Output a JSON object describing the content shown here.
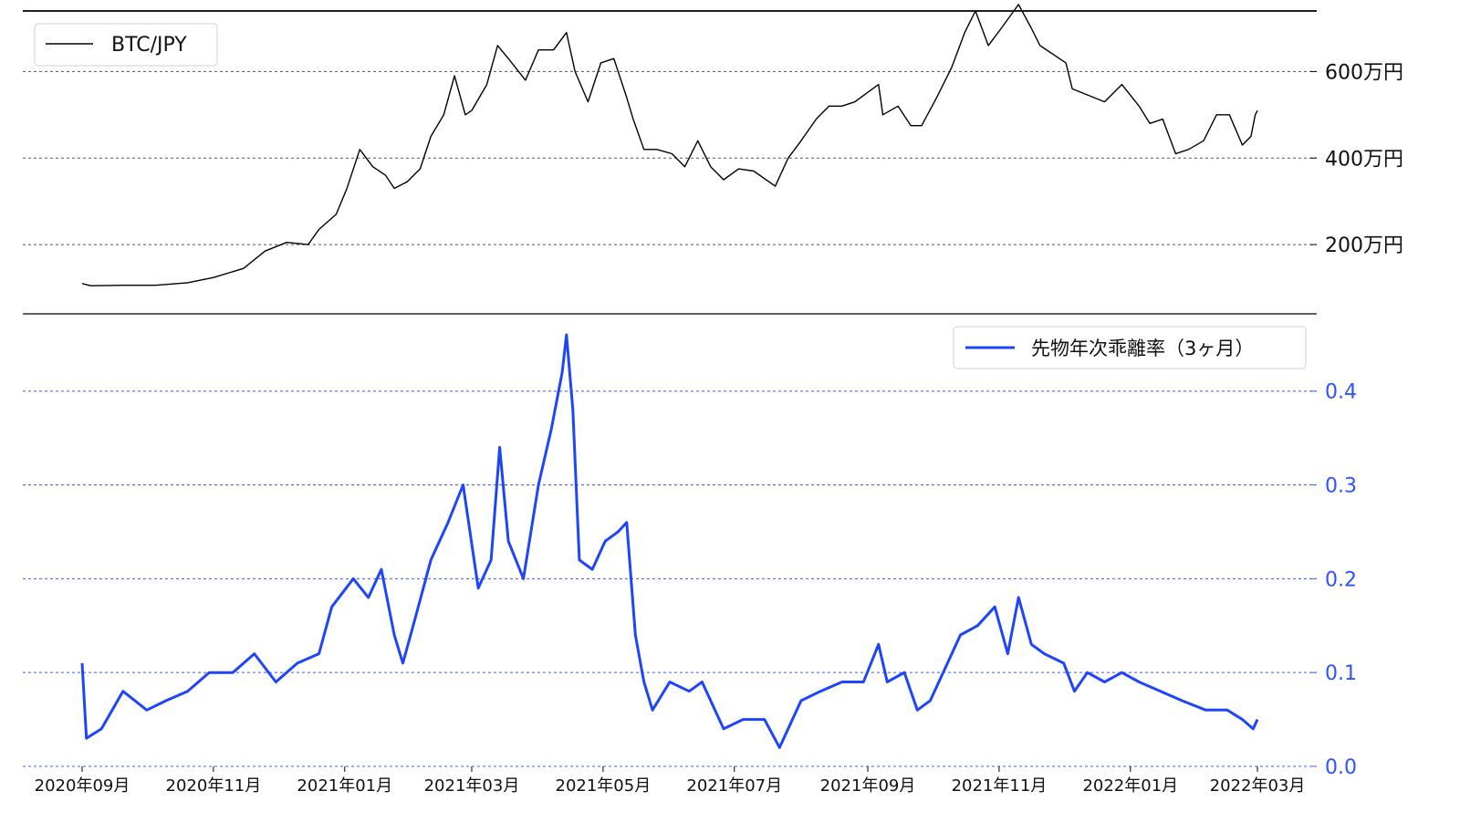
{
  "chart_data": [
    {
      "type": "line",
      "legend_position": "top-left",
      "grid": "horizontal, dashed",
      "y_axis_side": "right",
      "ylim": [
        40,
        740
      ],
      "y_ticks": [
        200,
        400,
        600
      ],
      "y_tick_labels": [
        "200万円",
        "400万円",
        "600万円"
      ],
      "series": [
        {
          "name": "BTC/JPY",
          "color": "#000000",
          "points": [
            [
              "2020-09-01",
              110
            ],
            [
              "2020-09-05",
              105
            ],
            [
              "2020-09-20",
              106
            ],
            [
              "2020-10-05",
              106
            ],
            [
              "2020-10-20",
              112
            ],
            [
              "2020-11-01",
              124
            ],
            [
              "2020-11-15",
              145
            ],
            [
              "2020-11-25",
              185
            ],
            [
              "2020-12-05",
              205
            ],
            [
              "2020-12-15",
              200
            ],
            [
              "2020-12-20",
              235
            ],
            [
              "2020-12-28",
              270
            ],
            [
              "2021-01-02",
              330
            ],
            [
              "2021-01-08",
              420
            ],
            [
              "2021-01-14",
              380
            ],
            [
              "2021-01-20",
              360
            ],
            [
              "2021-01-24",
              330
            ],
            [
              "2021-01-30",
              345
            ],
            [
              "2021-02-05",
              375
            ],
            [
              "2021-02-10",
              450
            ],
            [
              "2021-02-16",
              500
            ],
            [
              "2021-02-21",
              590
            ],
            [
              "2021-02-26",
              500
            ],
            [
              "2021-03-01",
              510
            ],
            [
              "2021-03-08",
              570
            ],
            [
              "2021-03-13",
              660
            ],
            [
              "2021-03-18",
              630
            ],
            [
              "2021-03-26",
              580
            ],
            [
              "2021-04-01",
              650
            ],
            [
              "2021-04-08",
              650
            ],
            [
              "2021-04-14",
              690
            ],
            [
              "2021-04-18",
              600
            ],
            [
              "2021-04-24",
              530
            ],
            [
              "2021-04-30",
              620
            ],
            [
              "2021-05-06",
              630
            ],
            [
              "2021-05-12",
              540
            ],
            [
              "2021-05-15",
              490
            ],
            [
              "2021-05-20",
              420
            ],
            [
              "2021-05-26",
              420
            ],
            [
              "2021-06-02",
              410
            ],
            [
              "2021-06-08",
              380
            ],
            [
              "2021-06-14",
              440
            ],
            [
              "2021-06-20",
              380
            ],
            [
              "2021-06-26",
              350
            ],
            [
              "2021-07-03",
              375
            ],
            [
              "2021-07-10",
              370
            ],
            [
              "2021-07-20",
              335
            ],
            [
              "2021-07-26",
              400
            ],
            [
              "2021-08-01",
              440
            ],
            [
              "2021-08-08",
              490
            ],
            [
              "2021-08-14",
              520
            ],
            [
              "2021-08-20",
              520
            ],
            [
              "2021-08-26",
              530
            ],
            [
              "2021-09-06",
              570
            ],
            [
              "2021-09-08",
              500
            ],
            [
              "2021-09-15",
              520
            ],
            [
              "2021-09-21",
              475
            ],
            [
              "2021-09-26",
              475
            ],
            [
              "2021-10-03",
              540
            ],
            [
              "2021-10-10",
              610
            ],
            [
              "2021-10-16",
              690
            ],
            [
              "2021-10-21",
              740
            ],
            [
              "2021-10-27",
              660
            ],
            [
              "2021-11-02",
              700
            ],
            [
              "2021-11-10",
              755
            ],
            [
              "2021-11-16",
              700
            ],
            [
              "2021-11-20",
              660
            ],
            [
              "2021-11-26",
              640
            ],
            [
              "2021-12-02",
              620
            ],
            [
              "2021-12-05",
              560
            ],
            [
              "2021-12-15",
              540
            ],
            [
              "2021-12-20",
              530
            ],
            [
              "2021-12-28",
              570
            ],
            [
              "2022-01-05",
              520
            ],
            [
              "2022-01-10",
              480
            ],
            [
              "2022-01-16",
              490
            ],
            [
              "2022-01-22",
              410
            ],
            [
              "2022-01-28",
              420
            ],
            [
              "2022-02-04",
              440
            ],
            [
              "2022-02-10",
              500
            ],
            [
              "2022-02-16",
              500
            ],
            [
              "2022-02-22",
              430
            ],
            [
              "2022-02-26",
              450
            ],
            [
              "2022-02-28",
              500
            ],
            [
              "2022-03-01",
              510
            ]
          ]
        }
      ]
    },
    {
      "type": "line",
      "legend_position": "top-right",
      "grid": "horizontal, dashed",
      "y_axis_side": "right",
      "ylim": [
        0.0,
        0.46
      ],
      "y_ticks": [
        0.0,
        0.1,
        0.2,
        0.3,
        0.4
      ],
      "y_tick_labels": [
        "0.0",
        "0.1",
        "0.2",
        "0.3",
        "0.4"
      ],
      "x_tick_labels": [
        "2020年09月",
        "2020年11月",
        "2021年01月",
        "2021年03月",
        "2021年05月",
        "2021年07月",
        "2021年09月",
        "2021年11月",
        "2022年01月",
        "2022年03月"
      ],
      "series": [
        {
          "name": "先物年次乖離率（3ヶ月）",
          "color": "#1f45fc",
          "points": [
            [
              "2020-09-01",
              0.11
            ],
            [
              "2020-09-03",
              0.03
            ],
            [
              "2020-09-10",
              0.04
            ],
            [
              "2020-09-20",
              0.08
            ],
            [
              "2020-10-01",
              0.06
            ],
            [
              "2020-10-10",
              0.07
            ],
            [
              "2020-10-20",
              0.08
            ],
            [
              "2020-10-30",
              0.1
            ],
            [
              "2020-11-10",
              0.1
            ],
            [
              "2020-11-20",
              0.12
            ],
            [
              "2020-11-30",
              0.09
            ],
            [
              "2020-12-10",
              0.11
            ],
            [
              "2020-12-20",
              0.12
            ],
            [
              "2020-12-26",
              0.17
            ],
            [
              "2021-01-05",
              0.2
            ],
            [
              "2021-01-12",
              0.18
            ],
            [
              "2021-01-18",
              0.21
            ],
            [
              "2021-01-24",
              0.14
            ],
            [
              "2021-01-28",
              0.11
            ],
            [
              "2021-02-03",
              0.16
            ],
            [
              "2021-02-10",
              0.22
            ],
            [
              "2021-02-18",
              0.26
            ],
            [
              "2021-02-25",
              0.3
            ],
            [
              "2021-03-04",
              0.19
            ],
            [
              "2021-03-10",
              0.22
            ],
            [
              "2021-03-14",
              0.34
            ],
            [
              "2021-03-18",
              0.24
            ],
            [
              "2021-03-25",
              0.2
            ],
            [
              "2021-04-01",
              0.3
            ],
            [
              "2021-04-07",
              0.36
            ],
            [
              "2021-04-12",
              0.42
            ],
            [
              "2021-04-14",
              0.46
            ],
            [
              "2021-04-17",
              0.38
            ],
            [
              "2021-04-20",
              0.22
            ],
            [
              "2021-04-26",
              0.21
            ],
            [
              "2021-05-02",
              0.24
            ],
            [
              "2021-05-08",
              0.25
            ],
            [
              "2021-05-12",
              0.26
            ],
            [
              "2021-05-16",
              0.14
            ],
            [
              "2021-05-20",
              0.09
            ],
            [
              "2021-05-24",
              0.06
            ],
            [
              "2021-06-01",
              0.09
            ],
            [
              "2021-06-10",
              0.08
            ],
            [
              "2021-06-16",
              0.09
            ],
            [
              "2021-06-22",
              0.06
            ],
            [
              "2021-06-26",
              0.04
            ],
            [
              "2021-07-05",
              0.05
            ],
            [
              "2021-07-15",
              0.05
            ],
            [
              "2021-07-22",
              0.02
            ],
            [
              "2021-07-26",
              0.04
            ],
            [
              "2021-08-01",
              0.07
            ],
            [
              "2021-08-10",
              0.08
            ],
            [
              "2021-08-20",
              0.09
            ],
            [
              "2021-08-30",
              0.09
            ],
            [
              "2021-09-06",
              0.13
            ],
            [
              "2021-09-10",
              0.09
            ],
            [
              "2021-09-18",
              0.1
            ],
            [
              "2021-09-24",
              0.06
            ],
            [
              "2021-09-30",
              0.07
            ],
            [
              "2021-10-06",
              0.1
            ],
            [
              "2021-10-14",
              0.14
            ],
            [
              "2021-10-22",
              0.15
            ],
            [
              "2021-10-30",
              0.17
            ],
            [
              "2021-11-05",
              0.12
            ],
            [
              "2021-11-10",
              0.18
            ],
            [
              "2021-11-16",
              0.13
            ],
            [
              "2021-11-22",
              0.12
            ],
            [
              "2021-12-01",
              0.11
            ],
            [
              "2021-12-06",
              0.08
            ],
            [
              "2021-12-12",
              0.1
            ],
            [
              "2021-12-20",
              0.09
            ],
            [
              "2021-12-28",
              0.1
            ],
            [
              "2022-01-05",
              0.09
            ],
            [
              "2022-01-15",
              0.08
            ],
            [
              "2022-01-25",
              0.07
            ],
            [
              "2022-02-05",
              0.06
            ],
            [
              "2022-02-15",
              0.06
            ],
            [
              "2022-02-22",
              0.05
            ],
            [
              "2022-02-27",
              0.04
            ],
            [
              "2022-03-01",
              0.05
            ]
          ]
        }
      ]
    }
  ]
}
